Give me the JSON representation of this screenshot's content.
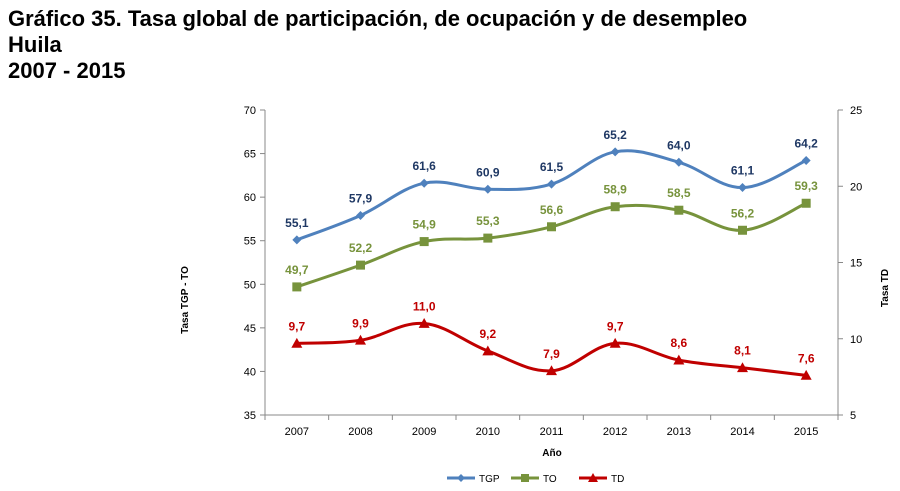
{
  "title": {
    "line1": "Gráfico 35. Tasa global de participación, de ocupación y de desempleo",
    "line2": "Huila",
    "line3": "2007 - 2015"
  },
  "chart_data": {
    "type": "line",
    "categories": [
      "2007",
      "2008",
      "2009",
      "2010",
      "2011",
      "2012",
      "2013",
      "2014",
      "2015"
    ],
    "xlabel": "Año",
    "ylabel": "Tasa TGP - TO",
    "y2label": "Tasa TD",
    "ylim": [
      35,
      70
    ],
    "yticks": [
      35,
      40,
      45,
      50,
      55,
      60,
      65,
      70
    ],
    "y2lim": [
      5,
      25
    ],
    "y2ticks": [
      5,
      10,
      15,
      20,
      25
    ],
    "grid": false,
    "legend_position": "bottom",
    "series": [
      {
        "name": "TGP",
        "axis": "left",
        "marker": "diamond",
        "color": "#4F81BD",
        "label_color": "#1F3864",
        "values": [
          55.1,
          57.9,
          61.6,
          60.9,
          61.5,
          65.2,
          64.0,
          61.1,
          64.2
        ],
        "labels": [
          "55,1",
          "57,9",
          "61,6",
          "60,9",
          "61,5",
          "65,2",
          "64,0",
          "61,1",
          "64,2"
        ]
      },
      {
        "name": "TO",
        "axis": "left",
        "marker": "square",
        "color": "#77933C",
        "label_color": "#77933C",
        "values": [
          49.7,
          52.2,
          54.9,
          55.3,
          56.6,
          58.9,
          58.5,
          56.2,
          59.3
        ],
        "labels": [
          "49,7",
          "52,2",
          "54,9",
          "55,3",
          "56,6",
          "58,9",
          "58,5",
          "56,2",
          "59,3"
        ]
      },
      {
        "name": "TD",
        "axis": "right",
        "marker": "triangle",
        "color": "#C00000",
        "label_color": "#C00000",
        "values": [
          9.7,
          9.9,
          11.0,
          9.2,
          7.9,
          9.7,
          8.6,
          8.1,
          7.6
        ],
        "labels": [
          "9,7",
          "9,9",
          "11,0",
          "9,2",
          "7,9",
          "9,7",
          "8,6",
          "8,1",
          "7,6"
        ]
      }
    ]
  }
}
